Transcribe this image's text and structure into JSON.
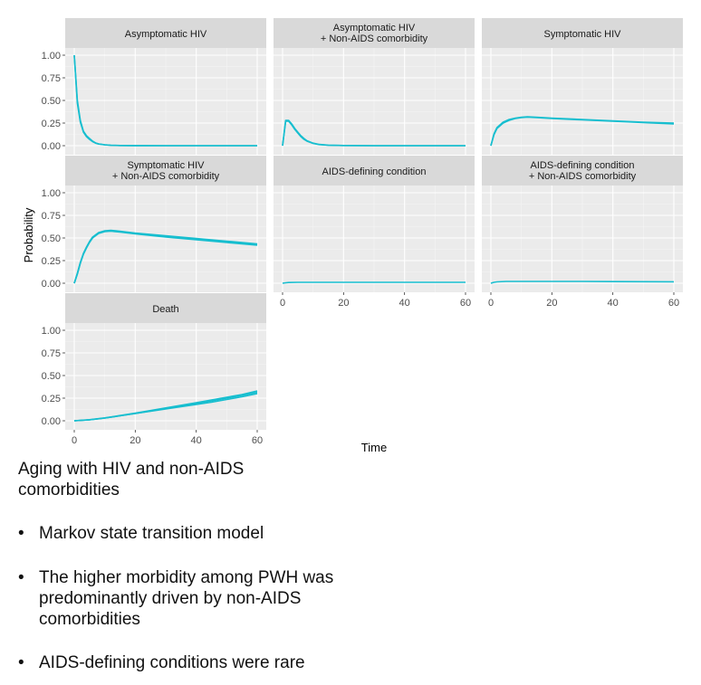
{
  "chart_data": {
    "type": "line",
    "facets": [
      {
        "title": [
          "Asymptomatic HIV"
        ],
        "series": [
          {
            "x": [
              0,
              1,
              2,
              3,
              4,
              5,
              6,
              7,
              8,
              10,
              12,
              15,
              20,
              30,
              40,
              50,
              60
            ],
            "y": [
              1.0,
              0.5,
              0.28,
              0.16,
              0.11,
              0.08,
              0.05,
              0.03,
              0.02,
              0.01,
              0.005,
              0.002,
              0.001,
              0,
              0,
              0,
              0
            ]
          },
          {
            "x": [
              0,
              1,
              2,
              3,
              4,
              5,
              6,
              7,
              8,
              10,
              12,
              15,
              20,
              30,
              40,
              50,
              60
            ],
            "y": [
              1.0,
              0.47,
              0.26,
              0.15,
              0.1,
              0.07,
              0.045,
              0.028,
              0.018,
              0.009,
              0.004,
              0.002,
              0.001,
              0,
              0,
              0,
              0
            ]
          }
        ]
      },
      {
        "title": [
          "Asymptomatic HIV",
          "+ Non-AIDS comorbidity"
        ],
        "series": [
          {
            "x": [
              0,
              1,
              2,
              3,
              4,
              5,
              6,
              7,
              8,
              10,
              12,
              15,
              20,
              30,
              40,
              50,
              60
            ],
            "y": [
              0,
              0.27,
              0.27,
              0.23,
              0.18,
              0.14,
              0.1,
              0.07,
              0.05,
              0.025,
              0.012,
              0.005,
              0.002,
              0,
              0,
              0,
              0
            ]
          },
          {
            "x": [
              0,
              1,
              2,
              3,
              4,
              5,
              6,
              7,
              8,
              10,
              12,
              15,
              20,
              30,
              40,
              50,
              60
            ],
            "y": [
              0,
              0.28,
              0.28,
              0.24,
              0.19,
              0.15,
              0.11,
              0.08,
              0.055,
              0.028,
              0.014,
              0.006,
              0.002,
              0,
              0,
              0,
              0
            ]
          }
        ]
      },
      {
        "title": [
          "Symptomatic HIV"
        ],
        "series": [
          {
            "x": [
              0,
              1,
              2,
              3,
              4,
              6,
              8,
              10,
              12,
              15,
              20,
              30,
              40,
              50,
              60
            ],
            "y": [
              0,
              0.12,
              0.19,
              0.22,
              0.25,
              0.28,
              0.3,
              0.31,
              0.315,
              0.31,
              0.3,
              0.285,
              0.27,
              0.255,
              0.24
            ]
          },
          {
            "x": [
              0,
              1,
              2,
              3,
              4,
              6,
              8,
              10,
              12,
              15,
              20,
              30,
              40,
              50,
              60
            ],
            "y": [
              0,
              0.13,
              0.2,
              0.23,
              0.26,
              0.29,
              0.305,
              0.315,
              0.32,
              0.315,
              0.305,
              0.29,
              0.275,
              0.26,
              0.25
            ]
          }
        ]
      },
      {
        "title": [
          "Symptomatic HIV",
          "+ Non-AIDS comorbidity"
        ],
        "series": [
          {
            "x": [
              0,
              1,
              2,
              3,
              4,
              5,
              6,
              8,
              10,
              12,
              15,
              20,
              30,
              40,
              50,
              60
            ],
            "y": [
              0,
              0.1,
              0.22,
              0.32,
              0.39,
              0.45,
              0.5,
              0.55,
              0.57,
              0.575,
              0.565,
              0.545,
              0.51,
              0.48,
              0.45,
              0.42
            ]
          },
          {
            "x": [
              0,
              1,
              2,
              3,
              4,
              5,
              6,
              8,
              10,
              12,
              15,
              20,
              30,
              40,
              50,
              60
            ],
            "y": [
              0,
              0.11,
              0.23,
              0.33,
              0.4,
              0.46,
              0.51,
              0.56,
              0.58,
              0.585,
              0.575,
              0.555,
              0.525,
              0.495,
              0.465,
              0.435
            ]
          },
          {
            "x": [
              0,
              1,
              2,
              3,
              4,
              5,
              6,
              8,
              10,
              12,
              15,
              20,
              30,
              40,
              50,
              60
            ],
            "y": [
              0,
              0.105,
              0.225,
              0.325,
              0.395,
              0.455,
              0.505,
              0.555,
              0.575,
              0.58,
              0.57,
              0.55,
              0.518,
              0.488,
              0.458,
              0.428
            ]
          }
        ]
      },
      {
        "title": [
          "AIDS-defining condition"
        ],
        "series": [
          {
            "x": [
              0,
              1,
              2,
              5,
              10,
              20,
              30,
              40,
              50,
              60
            ],
            "y": [
              0,
              0.005,
              0.008,
              0.01,
              0.01,
              0.01,
              0.01,
              0.01,
              0.01,
              0.01
            ]
          }
        ]
      },
      {
        "title": [
          "AIDS-defining condition",
          "+ Non-AIDS comorbidity"
        ],
        "series": [
          {
            "x": [
              0,
              1,
              2,
              5,
              10,
              20,
              30,
              40,
              50,
              60
            ],
            "y": [
              0,
              0.01,
              0.015,
              0.02,
              0.02,
              0.02,
              0.02,
              0.018,
              0.017,
              0.016
            ]
          }
        ]
      },
      {
        "title": [
          "Death"
        ],
        "series": [
          {
            "x": [
              0,
              5,
              10,
              15,
              20,
              25,
              30,
              35,
              40,
              45,
              50,
              55,
              60
            ],
            "y": [
              0,
              0.01,
              0.03,
              0.055,
              0.08,
              0.105,
              0.13,
              0.155,
              0.18,
              0.205,
              0.235,
              0.265,
              0.3
            ]
          },
          {
            "x": [
              0,
              5,
              10,
              15,
              20,
              25,
              30,
              35,
              40,
              45,
              50,
              55,
              60
            ],
            "y": [
              0,
              0.01,
              0.03,
              0.055,
              0.08,
              0.108,
              0.136,
              0.164,
              0.192,
              0.22,
              0.25,
              0.28,
              0.315
            ]
          },
          {
            "x": [
              0,
              5,
              10,
              15,
              20,
              25,
              30,
              35,
              40,
              45,
              50,
              55,
              60
            ],
            "y": [
              0,
              0.012,
              0.032,
              0.058,
              0.085,
              0.113,
              0.142,
              0.171,
              0.2,
              0.23,
              0.26,
              0.29,
              0.33
            ]
          }
        ]
      }
    ],
    "xlabel": "Time",
    "ylabel": "Probability",
    "xlim": [
      0,
      60
    ],
    "ylim": [
      0,
      1
    ],
    "xticks": [
      "0",
      "20",
      "40",
      "60"
    ],
    "yticks": [
      "0.00",
      "0.25",
      "0.50",
      "0.75",
      "1.00"
    ],
    "grid": true,
    "line_color": "#17BECF",
    "panel_background": "#EBEBEB",
    "strip_background": "#D9D9D9"
  },
  "caption": "Aging with HIV and non-AIDS comorbidities",
  "bullets": [
    "Markov state transition model",
    "The higher morbidity among PWH was predominantly driven by non-AIDS comorbidities",
    "AIDS-defining conditions were rare"
  ],
  "bullet_symbol": "•"
}
